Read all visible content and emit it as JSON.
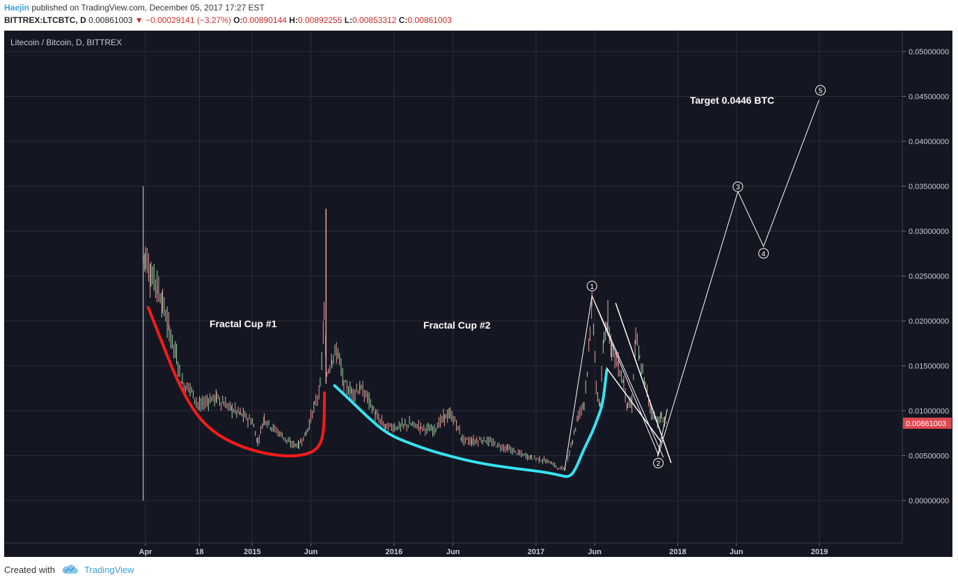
{
  "header": {
    "user": "Haejin",
    "published_text": "published on TradingView.com, December 05, 2017 17:27 EST",
    "symbol": "BITTREX:LTCBTC, D",
    "last": "0.00861003",
    "change": "−0.00029141 (−3.27%)",
    "o_label": "O:",
    "o_value": "0.00890144",
    "h_label": "H:",
    "h_value": "0.00892255",
    "l_label": "L:",
    "l_value": "0.00853312",
    "c_label": "C:",
    "c_value": "0.00861003"
  },
  "chart_data": {
    "type": "line",
    "title": "Litecoin / Bitcoin, D, BITTREX",
    "ylim": [
      -0.005,
      0.0525
    ],
    "y_ticks": [
      "0.05000000",
      "0.04500000",
      "0.04000000",
      "0.03500000",
      "0.03000000",
      "0.02500000",
      "0.02000000",
      "0.01500000",
      "0.01000000",
      "0.00500000",
      "0.00000000"
    ],
    "y_tick_values": [
      0.05,
      0.045,
      0.04,
      0.035,
      0.03,
      0.025,
      0.02,
      0.015,
      0.01,
      0.005,
      0.0
    ],
    "x_labels": [
      "Apr",
      "18",
      "2015",
      "Jun",
      "2016",
      "Jun",
      "2017",
      "Jun",
      "2018",
      "Jun",
      "2019"
    ],
    "x_label_dates": [
      "2014-04-01",
      "2014-08-18",
      "2015-01-01",
      "2015-06-01",
      "2016-01-01",
      "2016-06-01",
      "2017-01-01",
      "2017-06-01",
      "2018-01-01",
      "2018-06-01",
      "2019-01-01"
    ],
    "last_price_label": "0.00861003",
    "annotations": {
      "cup1": "Fractal Cup #1",
      "cup2": "Fractal Cup #2",
      "target": "Target 0.0446 BTC"
    },
    "wave_labels": [
      "1",
      "2",
      "3",
      "4",
      "5"
    ],
    "wave_points": [
      {
        "label": "1",
        "date": "2017-05-25",
        "value": 0.0228
      },
      {
        "label": "2",
        "date": "2017-11-12",
        "value": 0.0051
      },
      {
        "label": "3",
        "date": "2018-06-05",
        "value": 0.0344
      },
      {
        "label": "4",
        "date": "2018-08-10",
        "value": 0.0283
      },
      {
        "label": "5",
        "date": "2018-12-31",
        "value": 0.0446
      }
    ],
    "price_series": [
      [
        "2014-03-26",
        0.027
      ],
      [
        "2014-04-01",
        0.0275
      ],
      [
        "2014-04-15",
        0.025
      ],
      [
        "2014-05-01",
        0.024
      ],
      [
        "2014-05-15",
        0.022
      ],
      [
        "2014-06-01",
        0.019
      ],
      [
        "2014-06-20",
        0.016
      ],
      [
        "2014-07-05",
        0.013
      ],
      [
        "2014-07-25",
        0.0125
      ],
      [
        "2014-08-18",
        0.0105
      ],
      [
        "2014-09-10",
        0.0112
      ],
      [
        "2014-10-01",
        0.0115
      ],
      [
        "2014-10-20",
        0.0108
      ],
      [
        "2014-11-10",
        0.0102
      ],
      [
        "2014-12-01",
        0.0097
      ],
      [
        "2015-01-01",
        0.0088
      ],
      [
        "2015-01-15",
        0.0065
      ],
      [
        "2015-02-01",
        0.0092
      ],
      [
        "2015-02-20",
        0.0082
      ],
      [
        "2015-03-15",
        0.0074
      ],
      [
        "2015-04-10",
        0.0063
      ],
      [
        "2015-05-01",
        0.0062
      ],
      [
        "2015-05-20",
        0.0075
      ],
      [
        "2015-06-10",
        0.0105
      ],
      [
        "2015-06-25",
        0.0125
      ],
      [
        "2015-07-05",
        0.0205
      ],
      [
        "2015-07-12",
        0.014
      ],
      [
        "2015-07-25",
        0.016
      ],
      [
        "2015-08-10",
        0.0165
      ],
      [
        "2015-08-25",
        0.0128
      ],
      [
        "2015-09-15",
        0.012
      ],
      [
        "2015-10-05",
        0.0125
      ],
      [
        "2015-10-25",
        0.0115
      ],
      [
        "2015-11-15",
        0.0095
      ],
      [
        "2015-12-10",
        0.0082
      ],
      [
        "2016-01-10",
        0.0082
      ],
      [
        "2016-02-10",
        0.0085
      ],
      [
        "2016-03-10",
        0.0082
      ],
      [
        "2016-04-10",
        0.0078
      ],
      [
        "2016-05-10",
        0.0093
      ],
      [
        "2016-05-25",
        0.0095
      ],
      [
        "2016-06-10",
        0.0086
      ],
      [
        "2016-06-25",
        0.0068
      ],
      [
        "2016-07-20",
        0.0066
      ],
      [
        "2016-08-20",
        0.0068
      ],
      [
        "2016-09-20",
        0.0062
      ],
      [
        "2016-10-20",
        0.0058
      ],
      [
        "2016-11-20",
        0.0052
      ],
      [
        "2016-12-20",
        0.0048
      ],
      [
        "2017-01-10",
        0.0046
      ],
      [
        "2017-02-10",
        0.0042
      ],
      [
        "2017-03-01",
        0.0035
      ],
      [
        "2017-03-20",
        0.0038
      ],
      [
        "2017-04-05",
        0.0068
      ],
      [
        "2017-04-20",
        0.0095
      ],
      [
        "2017-05-05",
        0.011
      ],
      [
        "2017-05-20",
        0.018
      ],
      [
        "2017-05-25",
        0.0228
      ],
      [
        "2017-06-05",
        0.0125
      ],
      [
        "2017-06-15",
        0.0105
      ],
      [
        "2017-06-25",
        0.018
      ],
      [
        "2017-07-05",
        0.0205
      ],
      [
        "2017-07-15",
        0.017
      ],
      [
        "2017-08-01",
        0.015
      ],
      [
        "2017-08-15",
        0.013
      ],
      [
        "2017-08-25",
        0.0105
      ],
      [
        "2017-09-05",
        0.0108
      ],
      [
        "2017-09-15",
        0.0185
      ],
      [
        "2017-09-25",
        0.0155
      ],
      [
        "2017-10-10",
        0.0128
      ],
      [
        "2017-10-25",
        0.01
      ],
      [
        "2017-11-10",
        0.0088
      ],
      [
        "2017-11-20",
        0.0092
      ],
      [
        "2017-12-05",
        0.00861
      ]
    ]
  },
  "footer": {
    "created_with": "Created with",
    "brand": "TradingView"
  },
  "colors": {
    "background": "#141722",
    "grid": "#2a2e39",
    "cup1": "#ff1a1a",
    "cup2": "#35e3f2",
    "waves": "#ffffff",
    "last_price": "#e0474f"
  }
}
